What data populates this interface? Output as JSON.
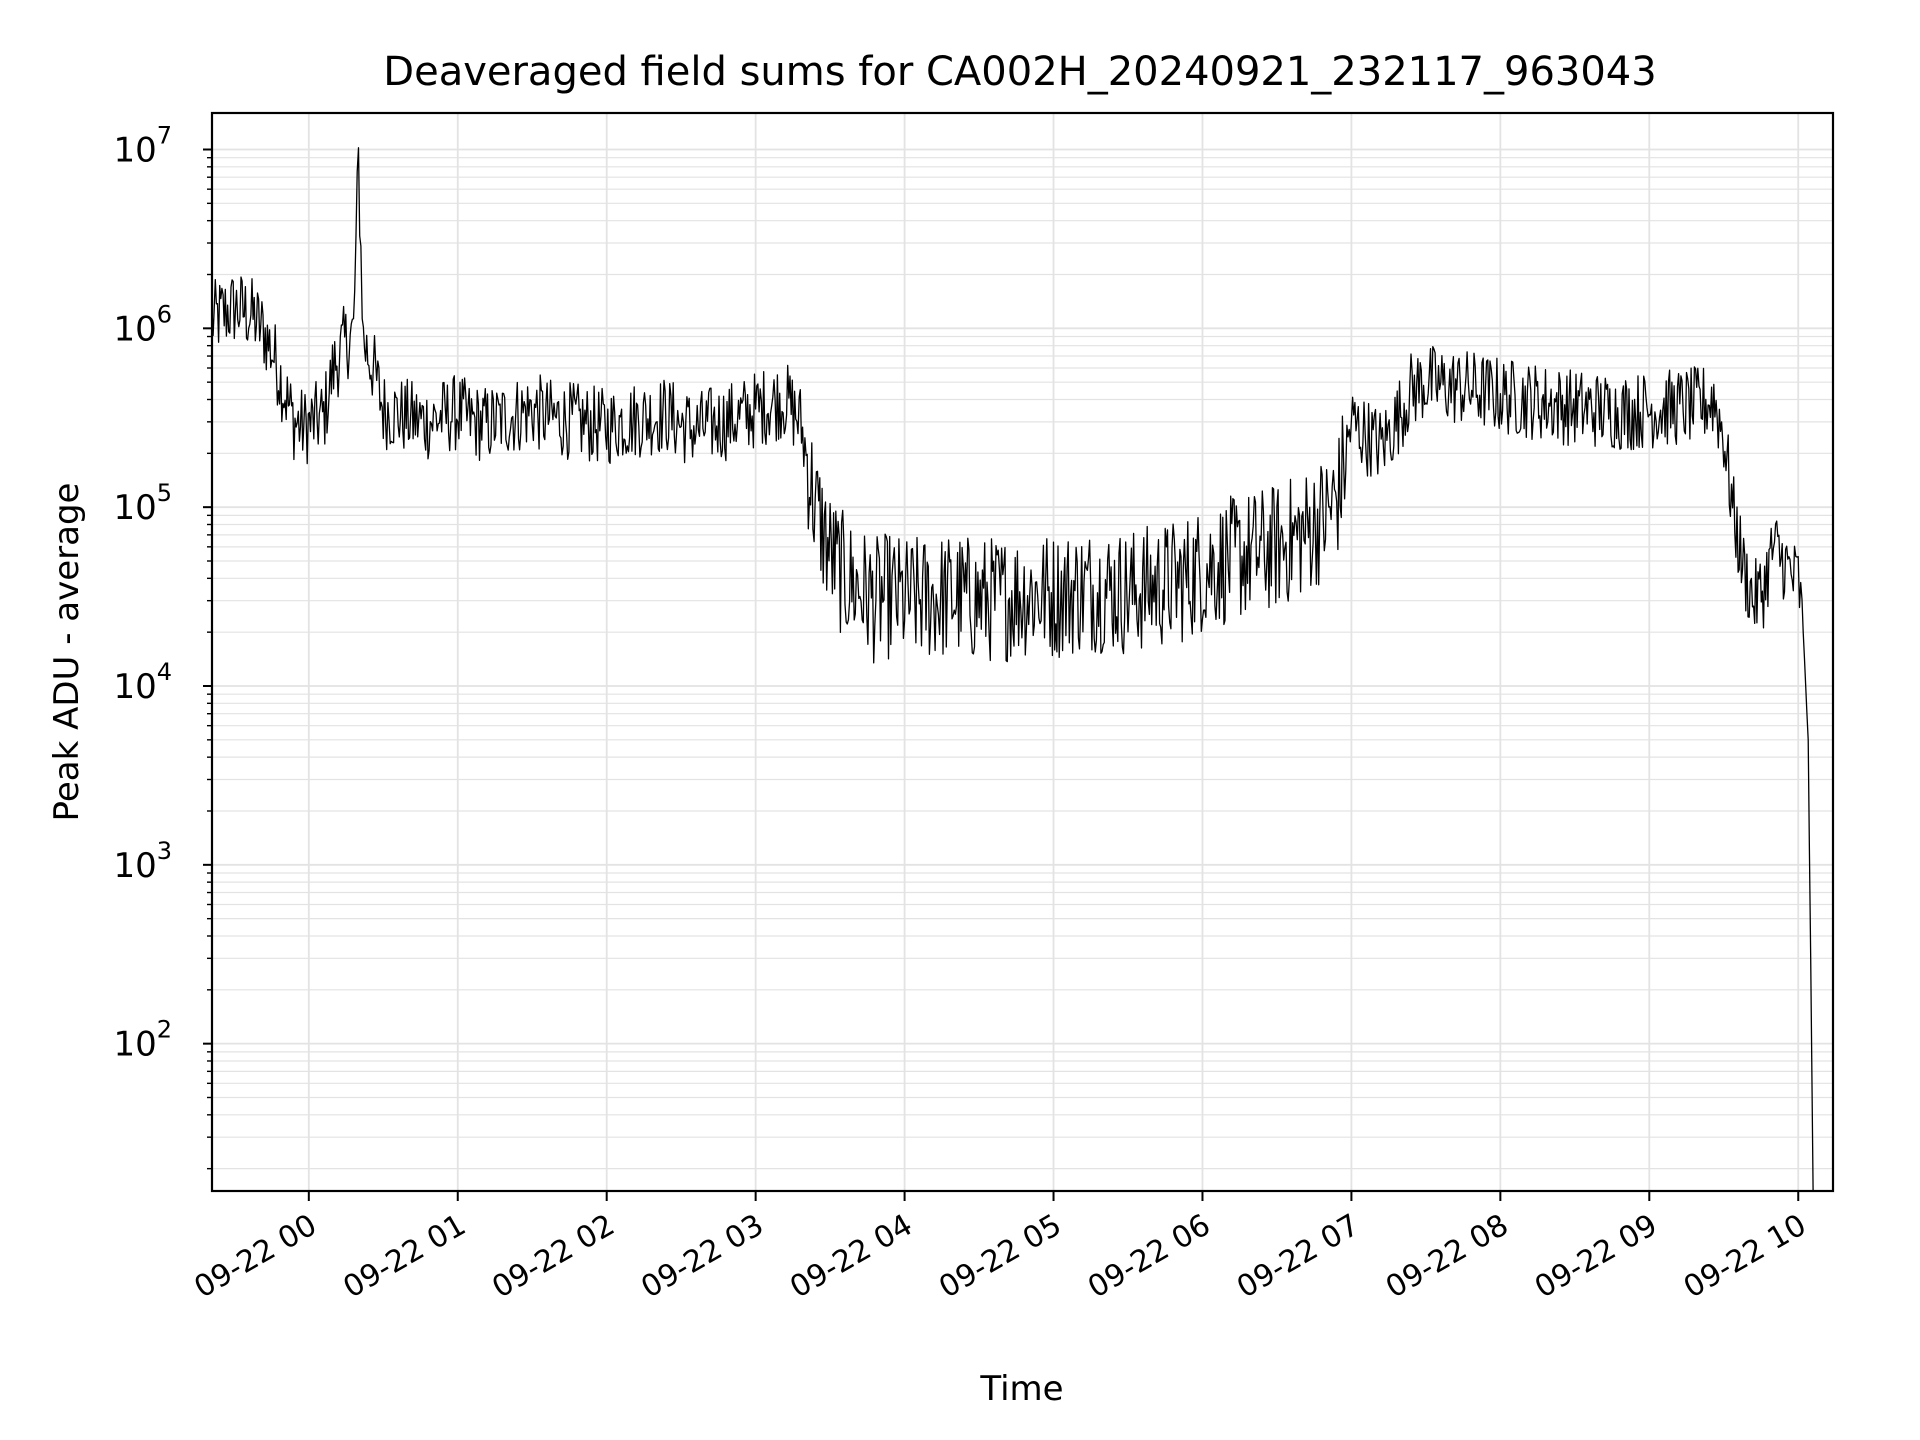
{
  "chart_data": {
    "type": "line",
    "title": "Deaveraged field sums for CA002H_20240921_232117_963043",
    "xlabel": "Time",
    "ylabel": "Peak ADU - average",
    "y_scale": "log",
    "ylim": [
      15,
      16000000
    ],
    "xlim": [
      "09-21 23:21",
      "09-22 10:14"
    ],
    "grid": true,
    "line_color": "#000000",
    "grid_color": "#e3e3e3",
    "x_ticks": [
      {
        "time": "09-22 00:00",
        "label": "09-22 00"
      },
      {
        "time": "09-22 01:00",
        "label": "09-22 01"
      },
      {
        "time": "09-22 02:00",
        "label": "09-22 02"
      },
      {
        "time": "09-22 03:00",
        "label": "09-22 03"
      },
      {
        "time": "09-22 04:00",
        "label": "09-22 04"
      },
      {
        "time": "09-22 05:00",
        "label": "09-22 05"
      },
      {
        "time": "09-22 06:00",
        "label": "09-22 06"
      },
      {
        "time": "09-22 07:00",
        "label": "09-22 07"
      },
      {
        "time": "09-22 08:00",
        "label": "09-22 08"
      },
      {
        "time": "09-22 09:00",
        "label": "09-22 09"
      },
      {
        "time": "09-22 10:00",
        "label": "09-22 10"
      }
    ],
    "y_ticks": [
      {
        "value": 100,
        "base": "10",
        "exp": "2"
      },
      {
        "value": 1000,
        "base": "10",
        "exp": "3"
      },
      {
        "value": 10000,
        "base": "10",
        "exp": "4"
      },
      {
        "value": 100000,
        "base": "10",
        "exp": "5"
      },
      {
        "value": 1000000,
        "base": "10",
        "exp": "6"
      },
      {
        "value": 10000000,
        "base": "10",
        "exp": "7"
      }
    ],
    "series": [
      {
        "x": [
          "09-21 23:21",
          "09-21 23:25",
          "09-21 23:30",
          "09-21 23:34",
          "09-21 23:38",
          "09-21 23:42",
          "09-21 23:46",
          "09-21 23:50",
          "09-21 23:54",
          "09-21 23:58",
          "09-22 00:02",
          "09-22 00:06",
          "09-22 00:10",
          "09-22 00:14",
          "09-22 00:18",
          "09-22 00:20",
          "09-22 00:22",
          "09-22 00:26",
          "09-22 00:30",
          "09-22 00:36",
          "09-22 00:42",
          "09-22 00:48",
          "09-22 00:54",
          "09-22 01:00",
          "09-22 01:06",
          "09-22 01:12",
          "09-22 01:18",
          "09-22 01:24",
          "09-22 01:30",
          "09-22 01:36",
          "09-22 01:42",
          "09-22 01:48",
          "09-22 01:54",
          "09-22 02:00",
          "09-22 02:06",
          "09-22 02:12",
          "09-22 02:18",
          "09-22 02:24",
          "09-22 02:30",
          "09-22 02:36",
          "09-22 02:42",
          "09-22 02:48",
          "09-22 02:54",
          "09-22 03:00",
          "09-22 03:06",
          "09-22 03:12",
          "09-22 03:18",
          "09-22 03:24",
          "09-22 03:30",
          "09-22 03:36",
          "09-22 03:42",
          "09-22 03:48",
          "09-22 03:54",
          "09-22 04:00",
          "09-22 04:10",
          "09-22 04:20",
          "09-22 04:30",
          "09-22 04:40",
          "09-22 04:50",
          "09-22 05:00",
          "09-22 05:10",
          "09-22 05:20",
          "09-22 05:30",
          "09-22 05:40",
          "09-22 05:50",
          "09-22 06:00",
          "09-22 06:10",
          "09-22 06:20",
          "09-22 06:30",
          "09-22 06:40",
          "09-22 06:50",
          "09-22 06:55",
          "09-22 07:00",
          "09-22 07:06",
          "09-22 07:12",
          "09-22 07:18",
          "09-22 07:24",
          "09-22 07:30",
          "09-22 07:36",
          "09-22 07:42",
          "09-22 07:48",
          "09-22 07:54",
          "09-22 08:00",
          "09-22 08:10",
          "09-22 08:20",
          "09-22 08:30",
          "09-22 08:40",
          "09-22 08:50",
          "09-22 09:00",
          "09-22 09:10",
          "09-22 09:20",
          "09-22 09:26",
          "09-22 09:30",
          "09-22 09:34",
          "09-22 09:38",
          "09-22 09:42",
          "09-22 09:46",
          "09-22 09:50",
          "09-22 09:54",
          "09-22 09:58",
          "09-22 10:00",
          "09-22 10:02",
          "09-22 10:04",
          "09-22 10:05",
          "09-22 10:06"
        ],
        "y": [
          1100000,
          1200000,
          1300000,
          1250000,
          1150000,
          950000,
          700000,
          450000,
          300000,
          280000,
          300000,
          320000,
          600000,
          800000,
          950000,
          8500000,
          850000,
          600000,
          350000,
          330000,
          310000,
          300000,
          320000,
          340000,
          300000,
          290000,
          310000,
          330000,
          350000,
          320000,
          310000,
          300000,
          290000,
          280000,
          300000,
          310000,
          320000,
          330000,
          290000,
          270000,
          290000,
          300000,
          320000,
          350000,
          380000,
          400000,
          300000,
          100000,
          55000,
          40000,
          35000,
          30000,
          32000,
          30000,
          31000,
          32000,
          30000,
          31000,
          33000,
          32000,
          34000,
          35000,
          33000,
          36000,
          38000,
          45000,
          50000,
          55000,
          60000,
          70000,
          90000,
          120000,
          300000,
          250000,
          220000,
          300000,
          450000,
          500000,
          480000,
          470000,
          460000,
          440000,
          420000,
          400000,
          380000,
          360000,
          350000,
          340000,
          350000,
          360000,
          370000,
          400000,
          250000,
          90000,
          45000,
          30000,
          35000,
          60000,
          50000,
          40000,
          40000,
          20000,
          5000,
          300,
          15
        ]
      }
    ]
  }
}
